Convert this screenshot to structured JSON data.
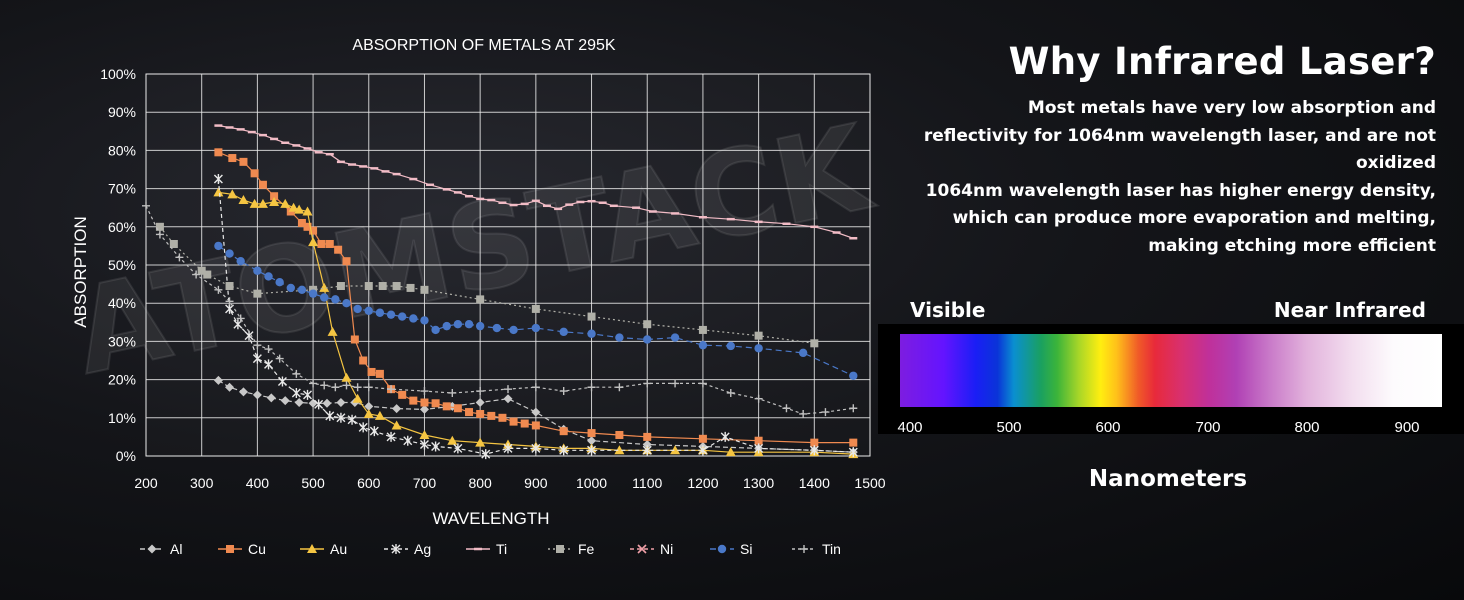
{
  "chart_data": {
    "type": "line",
    "title": "ABSORPTION OF METALS AT 295K",
    "xlabel": "WAVELENGTH",
    "ylabel": "ABSORPTION",
    "xlim": [
      200,
      1500
    ],
    "ylim": [
      0,
      100
    ],
    "x_ticks": [
      "200",
      "300",
      "400",
      "500",
      "600",
      "700",
      "800",
      "900",
      "1000",
      "1100",
      "1200",
      "1300",
      "1400",
      "1500"
    ],
    "y_ticks": [
      "0%",
      "10%",
      "20%",
      "30%",
      "40%",
      "50%",
      "60%",
      "70%",
      "80%",
      "90%",
      "100%"
    ],
    "grid": true,
    "legend_position": "bottom",
    "series": [
      {
        "name": "Al",
        "color": "#c8c8c8",
        "marker": "diamond",
        "dash": "5,3",
        "x": [
          330,
          350,
          375,
          400,
          425,
          450,
          475,
          500,
          525,
          550,
          575,
          600,
          650,
          700,
          750,
          800,
          850,
          900,
          950,
          1000,
          1100,
          1200,
          1300,
          1400,
          1470
        ],
        "y": [
          19.8,
          18,
          16.8,
          16,
          15.2,
          14.5,
          14,
          13.8,
          13.8,
          14,
          14,
          13,
          12.4,
          12.2,
          13,
          14,
          15,
          11.5,
          7,
          4,
          3,
          2.5,
          2,
          1.5,
          1
        ]
      },
      {
        "name": "Cu",
        "color": "#f08a50",
        "marker": "square",
        "dash": "",
        "x": [
          330,
          355,
          375,
          395,
          410,
          430,
          460,
          480,
          490,
          500,
          515,
          530,
          545,
          560,
          575,
          590,
          605,
          620,
          640,
          660,
          680,
          700,
          720,
          740,
          760,
          780,
          800,
          820,
          840,
          860,
          880,
          900,
          950,
          1000,
          1050,
          1100,
          1200,
          1300,
          1400,
          1470
        ],
        "y": [
          79.5,
          78,
          77,
          74,
          71,
          68,
          64,
          61,
          60,
          59,
          55.5,
          55.5,
          54,
          51,
          30.5,
          25,
          22,
          21.5,
          17.5,
          16,
          14.5,
          14,
          13.8,
          13,
          12.5,
          11.5,
          11,
          10.5,
          10,
          9,
          8.5,
          8,
          6.5,
          6,
          5.5,
          5,
          4.5,
          4,
          3.5,
          3.5
        ]
      },
      {
        "name": "Au",
        "color": "#f5c542",
        "marker": "triangle",
        "dash": "",
        "x": [
          330,
          355,
          375,
          395,
          410,
          430,
          450,
          465,
          475,
          490,
          500,
          520,
          535,
          560,
          580,
          600,
          620,
          650,
          700,
          750,
          800,
          850,
          900,
          950,
          1000,
          1050,
          1100,
          1150,
          1200,
          1250,
          1300,
          1400,
          1470
        ],
        "y": [
          69,
          68.5,
          67,
          66,
          66,
          66.5,
          66,
          65,
          64.5,
          64,
          56,
          44,
          32.5,
          20.5,
          15,
          11,
          10.5,
          8,
          5.5,
          4,
          3.5,
          3,
          2.5,
          2,
          2,
          1.5,
          1.5,
          1.5,
          1.5,
          1,
          1,
          1,
          0.5
        ]
      },
      {
        "name": "Ag",
        "color": "#e8e8e8",
        "marker": "asterisk",
        "dash": "4,3",
        "x": [
          330,
          350,
          365,
          385,
          400,
          420,
          445,
          470,
          490,
          510,
          530,
          550,
          570,
          590,
          610,
          640,
          670,
          700,
          720,
          760,
          810,
          850,
          900,
          950,
          1000,
          1100,
          1200,
          1240,
          1300,
          1400,
          1470
        ],
        "y": [
          72.5,
          38.5,
          34.5,
          31.5,
          25.5,
          24,
          19.5,
          16.5,
          16,
          13.5,
          10.5,
          10,
          9.5,
          7.5,
          6.5,
          5,
          4,
          3,
          2.5,
          2,
          0.5,
          2,
          2,
          1.5,
          1.5,
          1.5,
          1.5,
          5,
          2,
          1.5,
          1
        ]
      },
      {
        "name": "Ti",
        "color": "#f2bcc6",
        "marker": "dash",
        "dash": "",
        "x": [
          330,
          350,
          370,
          390,
          410,
          430,
          450,
          470,
          490,
          510,
          530,
          550,
          570,
          590,
          610,
          630,
          650,
          680,
          710,
          740,
          760,
          780,
          800,
          820,
          840,
          860,
          880,
          900,
          920,
          940,
          960,
          980,
          1000,
          1020,
          1040,
          1080,
          1110,
          1150,
          1200,
          1250,
          1300,
          1350,
          1400,
          1440,
          1470
        ],
        "y": [
          86.5,
          86,
          85.5,
          84.8,
          84,
          83,
          82,
          81.3,
          80.5,
          79.5,
          79,
          77,
          76.3,
          75.8,
          75.3,
          74.5,
          73.8,
          72.5,
          71,
          69.8,
          69,
          68,
          67.3,
          67,
          66.3,
          65.7,
          66,
          66.8,
          65.5,
          64.7,
          65.8,
          66.5,
          66.7,
          66.3,
          65.5,
          65,
          64,
          63.5,
          62.5,
          62,
          61.3,
          60.8,
          60,
          58.5,
          57
        ]
      },
      {
        "name": "Fe",
        "color": "#b0b0a8",
        "marker": "square",
        "dash": "2,3",
        "x": [
          225,
          250,
          300,
          310,
          350,
          400,
          500,
          550,
          600,
          625,
          650,
          675,
          700,
          800,
          900,
          1000,
          1100,
          1200,
          1300,
          1400
        ],
        "y": [
          60,
          55.5,
          48.5,
          47.5,
          44.5,
          42.5,
          43.5,
          44.5,
          44.5,
          44.5,
          44.5,
          44,
          43.5,
          41,
          38.5,
          36.5,
          34.5,
          33,
          31.5,
          29.5
        ]
      },
      {
        "name": "Ni",
        "color": "#f0a0a8",
        "marker": "cross",
        "dash": "4,3",
        "x": [],
        "y": []
      },
      {
        "name": "Si",
        "color": "#4a78c8",
        "marker": "circle",
        "dash": "6,4",
        "x": [
          330,
          350,
          370,
          400,
          420,
          440,
          460,
          480,
          500,
          520,
          540,
          560,
          580,
          600,
          620,
          640,
          660,
          680,
          700,
          720,
          740,
          760,
          780,
          800,
          830,
          860,
          900,
          950,
          1000,
          1050,
          1100,
          1150,
          1200,
          1250,
          1300,
          1380,
          1470
        ],
        "y": [
          55,
          53,
          51,
          48.5,
          47,
          45.5,
          44,
          43.5,
          42.5,
          41.5,
          41,
          40,
          38.5,
          38,
          37.5,
          37,
          36.5,
          36,
          35.5,
          33,
          34,
          34.5,
          34.5,
          34,
          33.5,
          33,
          33.5,
          32.5,
          32,
          31,
          30.5,
          31,
          29,
          28.8,
          28.2,
          27,
          21
        ]
      },
      {
        "name": "Tin",
        "color": "#c0c0c0",
        "marker": "plus",
        "dash": "3,3",
        "x": [
          200,
          225,
          260,
          290,
          330,
          350,
          370,
          400,
          420,
          440,
          470,
          500,
          520,
          540,
          560,
          580,
          600,
          640,
          700,
          750,
          800,
          850,
          900,
          950,
          1000,
          1050,
          1100,
          1150,
          1200,
          1250,
          1300,
          1350,
          1380,
          1420,
          1470
        ],
        "y": [
          65.5,
          58,
          52,
          47.5,
          43.5,
          40.5,
          36,
          29,
          28,
          25.5,
          21.5,
          19,
          18.5,
          18,
          18.5,
          18,
          18,
          17.5,
          17,
          16.5,
          17,
          17.5,
          18,
          17,
          18,
          18,
          19,
          19,
          19,
          16.5,
          15,
          12.5,
          11,
          11.5,
          12.5
        ]
      }
    ]
  },
  "panel": {
    "headline": "Why Infrared Laser?",
    "lines": [
      "Most metals have very low absorption and",
      "reflectivity for 1064nm wavelength laser, and are not",
      "oxidized",
      "1064nm wavelength laser has higher energy density,",
      "which can produce more evaporation and melting,",
      "making etching more efficient"
    ]
  },
  "spectrum": {
    "label_left": "Visible",
    "label_right": "Near Infrared",
    "ticks": [
      "400",
      "500",
      "600",
      "700",
      "800",
      "900"
    ],
    "axis_label": "Nanometers"
  },
  "watermark": "ATOMSTACK"
}
